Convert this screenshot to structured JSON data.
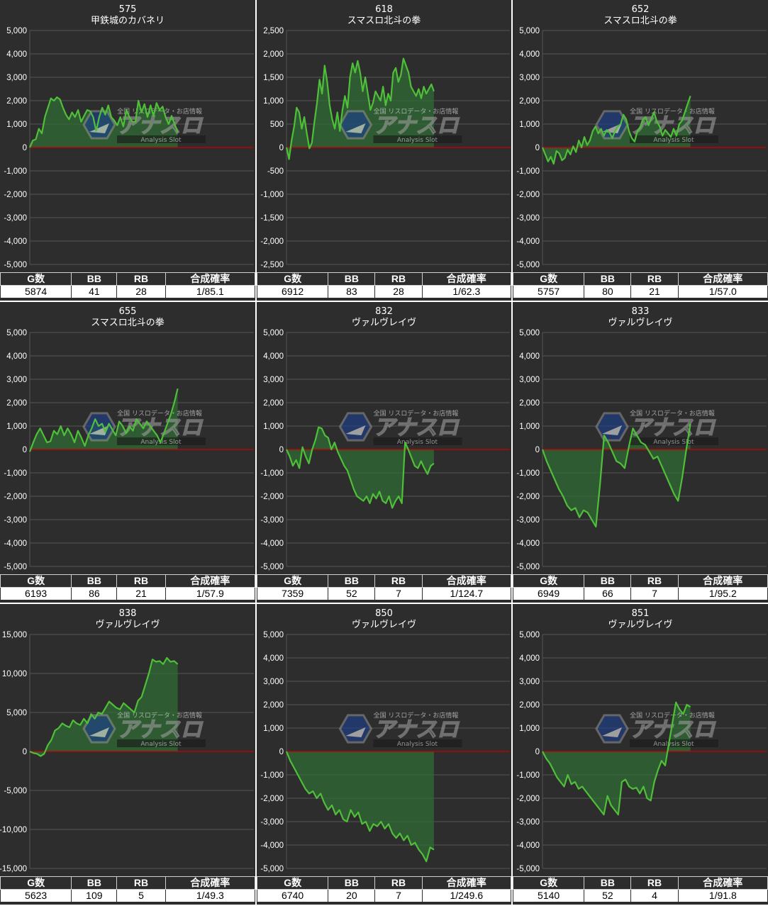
{
  "style": {
    "panel_bg": "#2d2d2d",
    "grid_color": "#555555",
    "zero_line_color": "#cc0000",
    "line_color": "#4fbf3a",
    "fill_color": "#2f6b33",
    "text_color": "#ffffff"
  },
  "watermark": {
    "brand": "アナスロ",
    "tagline": "全国 リスロデータ・お店情報",
    "sub": "Analysis Slot",
    "logo_icon": "hexagon-logo-icon"
  },
  "table_headers": [
    "G数",
    "BB",
    "RB",
    "合成確率"
  ],
  "chart_data": [
    {
      "type": "area",
      "machine_no": "575",
      "title": "甲鉄城のカバネリ",
      "ylim": [
        -5000,
        5000
      ],
      "y_ticks": [
        "5,000",
        "4,000",
        "3,000",
        "2,000",
        "1,000",
        "0",
        "-1,000",
        "-2,000",
        "-3,000",
        "-4,000",
        "-5,000"
      ],
      "values": [
        0,
        300,
        350,
        800,
        600,
        1300,
        1700,
        2100,
        2000,
        2150,
        2050,
        1700,
        1400,
        1200,
        1500,
        1300,
        1600,
        1100,
        1350,
        1600,
        1550,
        1300,
        700,
        1300,
        1700,
        1400,
        1800,
        1300,
        1150,
        950,
        1300,
        900,
        1600,
        1300,
        1100,
        1100,
        2000,
        1500,
        1850,
        1300,
        1800,
        1350,
        1900,
        1600,
        1750,
        1300,
        1000,
        1350,
        1000,
        650
      ],
      "stats": {
        "games": "5874",
        "bb": "41",
        "rb": "28",
        "prob": "1/85.1"
      }
    },
    {
      "type": "area",
      "machine_no": "618",
      "title": "スマスロ北斗の拳",
      "ylim": [
        -2500,
        2500
      ],
      "y_ticks": [
        "2,500",
        "2,000",
        "1,500",
        "1,000",
        "500",
        "0",
        "-500",
        "-1,000",
        "-1,500",
        "-2,000",
        "-2,500"
      ],
      "values": [
        0,
        -250,
        150,
        450,
        850,
        750,
        400,
        650,
        300,
        -20,
        100,
        550,
        950,
        1450,
        1150,
        1750,
        1400,
        900,
        600,
        400,
        750,
        350,
        800,
        1100,
        850,
        1500,
        1800,
        1600,
        1850,
        1600,
        1200,
        1500,
        1150,
        800,
        950,
        1200,
        1100,
        1000,
        1300,
        900,
        1150,
        1000,
        1600,
        1700,
        1400,
        1550,
        1900,
        1750,
        1600,
        1300,
        1200,
        1100,
        1250,
        1050,
        1300,
        1150,
        1250,
        1350,
        1200
      ],
      "stats": {
        "games": "6912",
        "bb": "83",
        "rb": "28",
        "prob": "1/62.3"
      }
    },
    {
      "type": "area",
      "machine_no": "652",
      "title": "スマスロ北斗の拳",
      "ylim": [
        -5000,
        5000
      ],
      "y_ticks": [
        "5,000",
        "4,000",
        "3,000",
        "2,000",
        "1,000",
        "0",
        "-1,000",
        "-2,000",
        "-3,000",
        "-4,000",
        "-5,000"
      ],
      "values": [
        0,
        -300,
        -600,
        -400,
        -700,
        -150,
        -250,
        -550,
        -450,
        -100,
        -300,
        50,
        -200,
        300,
        0,
        450,
        100,
        300,
        700,
        900,
        600,
        800,
        500,
        750,
        650,
        400,
        700,
        900,
        1000,
        1400,
        1200,
        700,
        400,
        250,
        700,
        850,
        1200,
        1300,
        950,
        1250,
        1500,
        1100,
        900,
        500,
        750,
        600,
        450,
        800,
        500,
        1000,
        1150,
        1500,
        1850,
        2200
      ],
      "stats": {
        "games": "5757",
        "bb": "80",
        "rb": "21",
        "prob": "1/57.0"
      }
    },
    {
      "type": "area",
      "machine_no": "655",
      "title": "スマスロ北斗の拳",
      "ylim": [
        -5000,
        5000
      ],
      "y_ticks": [
        "5,000",
        "4,000",
        "3,000",
        "2,000",
        "1,000",
        "0",
        "-1,000",
        "-2,000",
        "-3,000",
        "-4,000",
        "-5,000"
      ],
      "values": [
        -100,
        300,
        650,
        900,
        600,
        300,
        350,
        800,
        650,
        1000,
        600,
        900,
        650,
        300,
        800,
        500,
        150,
        600,
        900,
        1300,
        1000,
        1100,
        750,
        1100,
        850,
        600,
        1200,
        1000,
        700,
        1000,
        800,
        1300,
        1100,
        900,
        1200,
        1000,
        800,
        600,
        300,
        700,
        1100,
        1500,
        2000,
        2600
      ],
      "stats": {
        "games": "6193",
        "bb": "86",
        "rb": "21",
        "prob": "1/57.9"
      }
    },
    {
      "type": "area",
      "machine_no": "832",
      "title": "ヴァルヴレイヴ",
      "ylim": [
        -5000,
        5000
      ],
      "y_ticks": [
        "5,000",
        "4,000",
        "3,000",
        "2,000",
        "1,000",
        "0",
        "-1,000",
        "-2,000",
        "-3,000",
        "-4,000",
        "-5,000"
      ],
      "values": [
        0,
        -300,
        -700,
        -450,
        -800,
        100,
        -300,
        -600,
        0,
        400,
        950,
        900,
        600,
        500,
        0,
        300,
        -100,
        -400,
        -700,
        -900,
        -1300,
        -1700,
        -2000,
        -2100,
        -2200,
        -2000,
        -2300,
        -1900,
        -2100,
        -1800,
        -2200,
        -2300,
        -2000,
        -2500,
        -2200,
        -2000,
        -2300,
        300,
        0,
        -350,
        -700,
        -800,
        -500,
        -800,
        -1050,
        -700,
        -600
      ],
      "stats": {
        "games": "7359",
        "bb": "52",
        "rb": "7",
        "prob": "1/124.7"
      }
    },
    {
      "type": "area",
      "machine_no": "833",
      "title": "ヴァルヴレイヴ",
      "ylim": [
        -5000,
        5000
      ],
      "y_ticks": [
        "5,000",
        "4,000",
        "3,000",
        "2,000",
        "1,000",
        "0",
        "-1,000",
        "-2,000",
        "-3,000",
        "-4,000",
        "-5,000"
      ],
      "values": [
        0,
        -500,
        -900,
        -1300,
        -1700,
        -2000,
        -2400,
        -2600,
        -2500,
        -2900,
        -2600,
        -2700,
        -3000,
        -3300,
        -1500,
        600,
        300,
        -100,
        -500,
        -600,
        -800,
        100,
        900,
        600,
        300,
        200,
        -100,
        -400,
        -300,
        -700,
        -1100,
        -1500,
        -1900,
        -2200,
        -1200,
        0,
        1100
      ],
      "stats": {
        "games": "6949",
        "bb": "66",
        "rb": "7",
        "prob": "1/95.2"
      }
    },
    {
      "type": "area",
      "machine_no": "838",
      "title": "ヴァルヴレイヴ",
      "ylim": [
        -15000,
        15000
      ],
      "y_ticks": [
        "15,000",
        "10,000",
        "5,000",
        "0",
        "-5,000",
        "-10,000",
        "-15,000"
      ],
      "values": [
        0,
        -200,
        -300,
        -600,
        -300,
        800,
        1500,
        2700,
        3000,
        3600,
        3300,
        3100,
        4000,
        3600,
        3400,
        4200,
        3600,
        4800,
        4200,
        5000,
        4800,
        5600,
        6400,
        6000,
        5600,
        5400,
        6200,
        5800,
        5400,
        5000,
        6500,
        7000,
        8500,
        10000,
        11800,
        11500,
        11600,
        11200,
        12000,
        11500,
        11600,
        11200
      ],
      "stats": {
        "games": "5623",
        "bb": "109",
        "rb": "5",
        "prob": "1/49.3"
      }
    },
    {
      "type": "area",
      "machine_no": "850",
      "title": "ヴァルヴレイヴ",
      "ylim": [
        -5000,
        5000
      ],
      "y_ticks": [
        "5,000",
        "4,000",
        "3,000",
        "2,000",
        "1,000",
        "0",
        "-1,000",
        "-2,000",
        "-3,000",
        "-4,000",
        "-5,000"
      ],
      "values": [
        0,
        -400,
        -700,
        -1000,
        -1300,
        -1600,
        -1800,
        -1700,
        -2000,
        -1800,
        -2200,
        -2500,
        -2300,
        -2700,
        -2500,
        -2900,
        -3000,
        -2500,
        -2800,
        -2600,
        -3100,
        -3000,
        -3400,
        -3100,
        -3200,
        -3000,
        -3300,
        -3100,
        -3500,
        -3700,
        -3500,
        -3800,
        -3600,
        -4000,
        -3900,
        -4200,
        -4400,
        -4700,
        -4100,
        -4200
      ],
      "stats": {
        "games": "6740",
        "bb": "20",
        "rb": "7",
        "prob": "1/249.6"
      }
    },
    {
      "type": "area",
      "machine_no": "851",
      "title": "ヴァルヴレイヴ",
      "ylim": [
        -5000,
        5000
      ],
      "y_ticks": [
        "5,000",
        "4,000",
        "3,000",
        "2,000",
        "1,000",
        "0",
        "-1,000",
        "-2,000",
        "-3,000",
        "-4,000",
        "-5,000"
      ],
      "values": [
        0,
        -300,
        -500,
        -800,
        -1100,
        -1300,
        -1500,
        -1000,
        -1400,
        -1300,
        -1600,
        -1500,
        -1700,
        -1900,
        -2100,
        -2300,
        -2500,
        -2700,
        -1900,
        -2300,
        -2500,
        -2700,
        -1300,
        -1200,
        -1500,
        -1600,
        -1550,
        -1800,
        -1500,
        -2000,
        -2100,
        -1300,
        -800,
        -400,
        -600,
        300,
        1200,
        2100,
        1800,
        1600,
        2000,
        1900
      ],
      "stats": {
        "games": "5140",
        "bb": "52",
        "rb": "4",
        "prob": "1/91.8"
      }
    }
  ]
}
